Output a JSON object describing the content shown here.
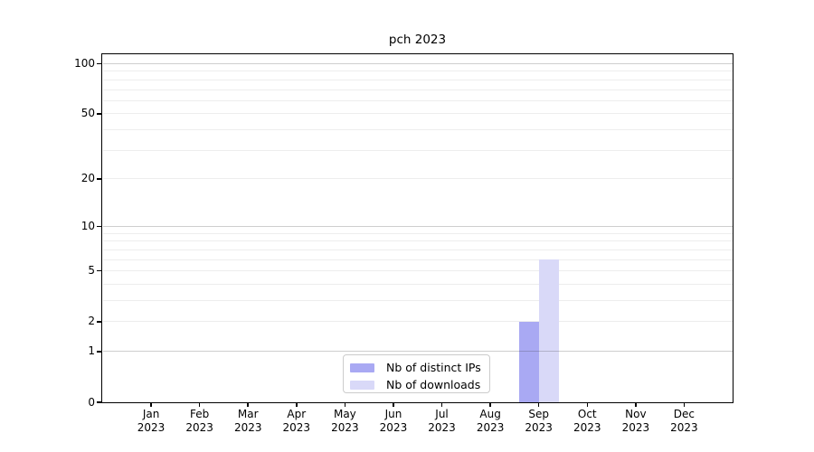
{
  "chart_data": {
    "type": "bar",
    "title": "pch 2023",
    "categories": [
      "Jan",
      "Feb",
      "Mar",
      "Apr",
      "May",
      "Jun",
      "Jul",
      "Aug",
      "Sep",
      "Oct",
      "Nov",
      "Dec"
    ],
    "category_year_line": "2023",
    "series": [
      {
        "name": "Nb of distinct IPs",
        "color": "#a9a9f3",
        "values": [
          0,
          0,
          0,
          0,
          0,
          0,
          0,
          0,
          2,
          0,
          0,
          0
        ]
      },
      {
        "name": "Nb of downloads",
        "color": "#d9d9f8",
        "values": [
          0,
          0,
          0,
          0,
          0,
          0,
          0,
          0,
          6,
          0,
          0,
          0
        ]
      }
    ],
    "yscale": "log1p",
    "ylim": [
      0,
      114
    ],
    "ytick_values": [
      0,
      1,
      2,
      5,
      10,
      20,
      50,
      100
    ],
    "grid_major_values": [
      1,
      10,
      100
    ],
    "grid_minor_values": [
      2,
      3,
      4,
      5,
      6,
      7,
      8,
      9,
      20,
      30,
      40,
      50,
      60,
      70,
      80,
      90
    ],
    "legend_position": "inside lower-center",
    "xlabel": "",
    "ylabel": ""
  }
}
